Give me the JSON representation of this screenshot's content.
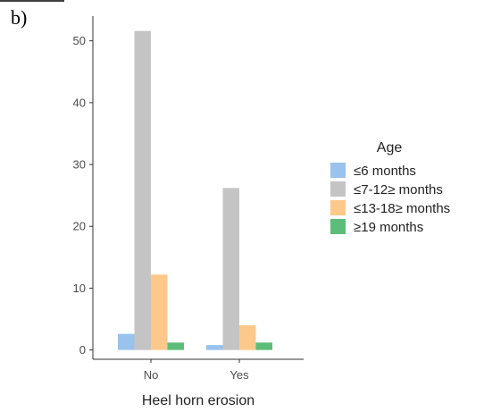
{
  "panel_label": "b)",
  "chart_data": {
    "type": "bar",
    "xlabel": "Heel horn erosion",
    "ylabel": "",
    "categories": [
      "No",
      "Yes"
    ],
    "ylim": [
      -1.5,
      54
    ],
    "yticks": [
      0,
      10,
      20,
      30,
      40,
      50
    ],
    "grid": false,
    "legend": {
      "title": "Age",
      "position": "right"
    },
    "series": [
      {
        "name": "≤6 months",
        "color": "#99c2ec",
        "values": [
          2.6,
          0.8
        ]
      },
      {
        "name": "≤7-12≥ months",
        "color": "#c4c4c4",
        "values": [
          51.6,
          26.2
        ]
      },
      {
        "name": "≤13-18≥ months",
        "color": "#fcc98a",
        "values": [
          12.2,
          4.0
        ]
      },
      {
        "name": "≥19 months",
        "color": "#5cbd7a",
        "values": [
          1.2,
          1.2
        ]
      }
    ]
  }
}
